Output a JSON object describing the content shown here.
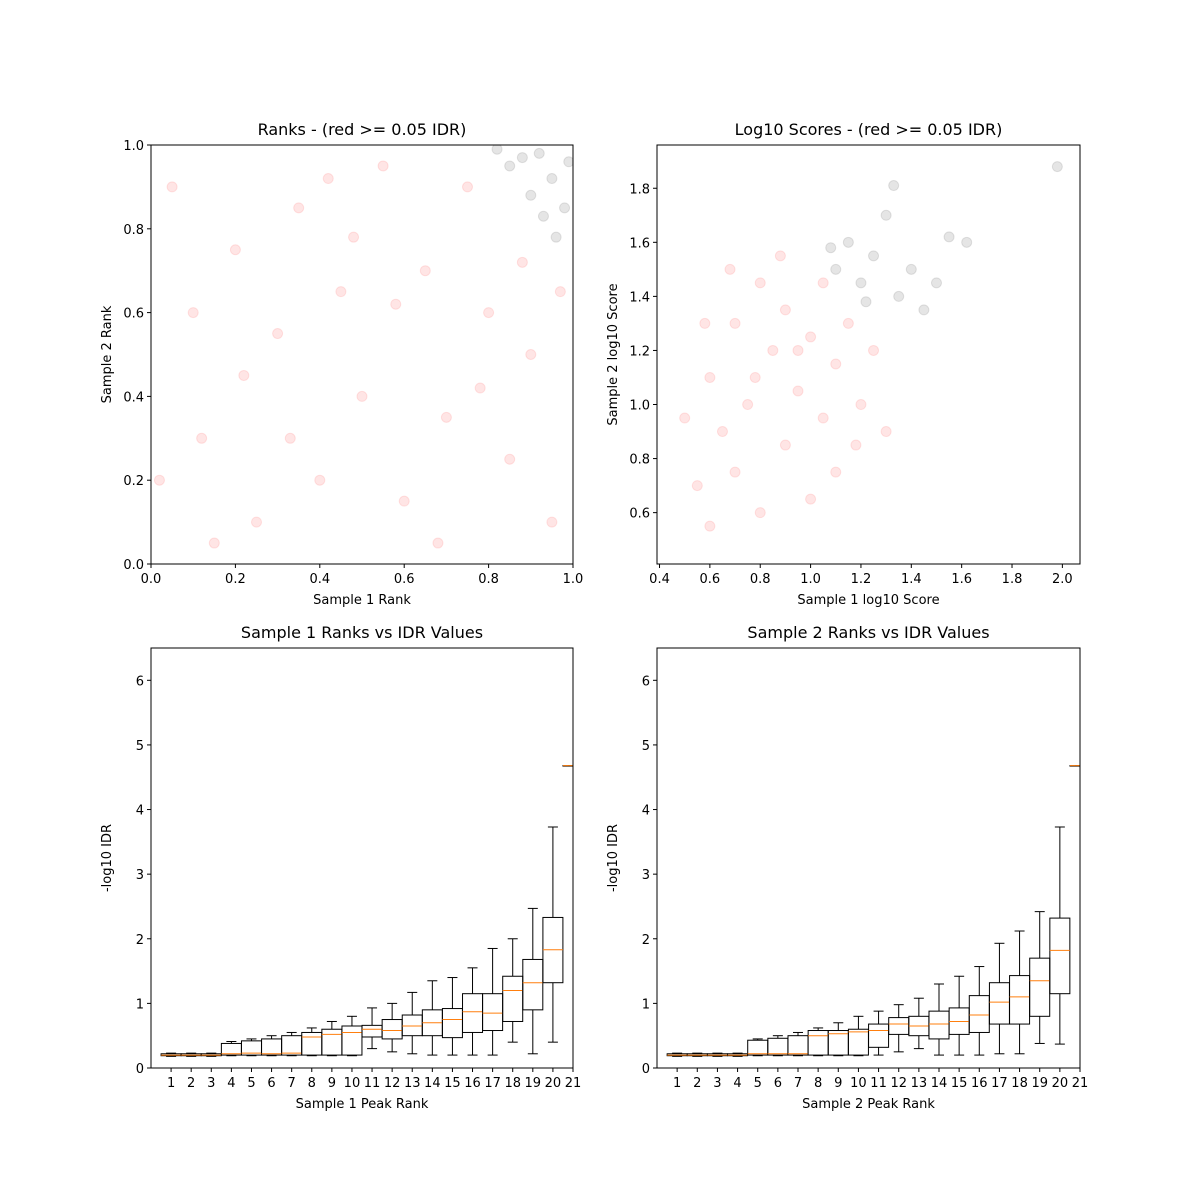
{
  "chart_data": [
    {
      "type": "scatter",
      "title": "Ranks - (red >= 0.05 IDR)",
      "x_label": "Sample 1 Rank",
      "y_label": "Sample 2 Rank",
      "xlim": [
        0,
        1
      ],
      "ylim": [
        0,
        1
      ],
      "xticks": [
        {
          "value": 0,
          "label": "0.0"
        },
        0.2,
        0.4,
        0.6,
        0.8,
        {
          "value": 1,
          "label": "1.0"
        }
      ],
      "yticks": [
        {
          "value": 0,
          "label": "0.0"
        },
        0.2,
        0.4,
        0.6,
        0.8,
        {
          "value": 1,
          "label": "1.0"
        }
      ],
      "series": [
        {
          "color": "#ff0000",
          "opacity": 0.1,
          "x": [
            0.05,
            0.12,
            0.2,
            0.25,
            0.3,
            0.35,
            0.4,
            0.45,
            0.5,
            0.55,
            0.6,
            0.65,
            0.7,
            0.75,
            0.8,
            0.85,
            0.9,
            0.95,
            0.1,
            0.15,
            0.22,
            0.33,
            0.42,
            0.58,
            0.68,
            0.78,
            0.88,
            0.97,
            0.02,
            0.48
          ],
          "y": [
            0.9,
            0.3,
            0.75,
            0.1,
            0.55,
            0.85,
            0.2,
            0.65,
            0.4,
            0.95,
            0.15,
            0.7,
            0.35,
            0.9,
            0.6,
            0.25,
            0.5,
            0.1,
            0.6,
            0.05,
            0.45,
            0.3,
            0.92,
            0.62,
            0.05,
            0.42,
            0.72,
            0.65,
            0.2,
            0.78
          ]
        },
        {
          "color": "#000000",
          "opacity": 0.1,
          "x": [
            0.85,
            0.9,
            0.95,
            0.92,
            0.98,
            0.88,
            0.96,
            0.82,
            0.99,
            0.93
          ],
          "y": [
            0.95,
            0.88,
            0.92,
            0.98,
            0.85,
            0.97,
            0.78,
            0.99,
            0.96,
            0.83
          ]
        }
      ]
    },
    {
      "type": "scatter",
      "title": "Log10 Scores - (red >= 0.05 IDR)",
      "x_label": "Sample 1 log10 Score",
      "y_label": "Sample 2 log10 Score",
      "xlim": [
        0.39,
        2.07
      ],
      "ylim": [
        0.41,
        1.96
      ],
      "xticks": [
        0.4,
        0.6,
        0.8,
        {
          "value": 1,
          "label": "1.0"
        },
        1.2,
        1.4,
        1.6,
        1.8,
        {
          "value": 2,
          "label": "2.0"
        }
      ],
      "yticks": [
        0.6,
        0.8,
        {
          "value": 1,
          "label": "1.0"
        },
        1.2,
        1.4,
        1.6,
        1.8
      ],
      "series": [
        {
          "color": "#ff0000",
          "opacity": 0.1,
          "x": [
            0.55,
            0.6,
            0.6,
            0.65,
            0.7,
            0.7,
            0.75,
            0.8,
            0.8,
            0.85,
            0.9,
            0.9,
            0.95,
            1.0,
            1.0,
            1.05,
            1.1,
            1.1,
            1.15,
            1.2,
            1.25,
            0.5,
            0.58,
            0.68,
            0.88,
            1.05,
            1.18,
            1.3,
            0.78,
            0.95
          ],
          "y": [
            0.7,
            1.1,
            0.55,
            0.9,
            1.3,
            0.75,
            1.0,
            1.45,
            0.6,
            1.2,
            0.85,
            1.35,
            1.05,
            0.65,
            1.25,
            0.95,
            1.15,
            0.75,
            1.3,
            1.0,
            1.2,
            0.95,
            1.3,
            1.5,
            1.55,
            1.45,
            0.85,
            0.9,
            1.1,
            1.2
          ]
        },
        {
          "color": "#000000",
          "opacity": 0.1,
          "x": [
            1.1,
            1.15,
            1.2,
            1.25,
            1.3,
            1.35,
            1.4,
            1.45,
            1.5,
            1.55,
            1.62,
            1.98,
            1.33,
            1.08,
            1.22
          ],
          "y": [
            1.5,
            1.6,
            1.45,
            1.55,
            1.7,
            1.4,
            1.5,
            1.35,
            1.45,
            1.62,
            1.6,
            1.88,
            1.81,
            1.58,
            1.38
          ]
        }
      ]
    },
    {
      "type": "box",
      "title": "Sample 1 Ranks vs IDR Values",
      "x_label": "Sample 1 Peak Rank",
      "y_label": "-log10 IDR",
      "xlim": [
        0,
        21
      ],
      "ylim": [
        0,
        6.5
      ],
      "xticks": [
        1,
        2,
        3,
        4,
        5,
        6,
        7,
        8,
        9,
        10,
        11,
        12,
        13,
        14,
        15,
        16,
        17,
        18,
        19,
        20,
        21
      ],
      "yticks": [
        0,
        1,
        2,
        3,
        4,
        5,
        6
      ],
      "x": [
        1,
        2,
        3,
        4,
        5,
        6,
        7,
        8,
        9,
        10,
        11,
        12,
        13,
        14,
        15,
        16,
        17,
        18,
        19,
        20,
        21
      ],
      "values": [
        [
          0.18,
          0.19,
          0.2,
          0.22,
          0.23
        ],
        [
          0.18,
          0.19,
          0.2,
          0.22,
          0.23
        ],
        [
          0.18,
          0.19,
          0.2,
          0.22,
          0.23
        ],
        [
          0.19,
          0.2,
          0.22,
          0.38,
          0.41
        ],
        [
          0.19,
          0.2,
          0.23,
          0.42,
          0.45
        ],
        [
          0.19,
          0.2,
          0.22,
          0.45,
          0.5
        ],
        [
          0.19,
          0.2,
          0.23,
          0.5,
          0.55
        ],
        [
          0.19,
          0.2,
          0.48,
          0.55,
          0.62
        ],
        [
          0.19,
          0.2,
          0.52,
          0.6,
          0.72
        ],
        [
          0.19,
          0.2,
          0.55,
          0.65,
          0.8
        ],
        [
          0.3,
          0.48,
          0.6,
          0.66,
          0.93
        ],
        [
          0.25,
          0.45,
          0.58,
          0.75,
          1.0
        ],
        [
          0.22,
          0.5,
          0.65,
          0.82,
          1.17
        ],
        [
          0.2,
          0.5,
          0.7,
          0.9,
          1.35
        ],
        [
          0.2,
          0.47,
          0.75,
          0.92,
          1.4
        ],
        [
          0.2,
          0.55,
          0.87,
          1.15,
          1.55
        ],
        [
          0.2,
          0.58,
          0.85,
          1.15,
          1.85
        ],
        [
          0.4,
          0.72,
          1.2,
          1.42,
          2.0
        ],
        [
          0.22,
          0.9,
          1.32,
          1.68,
          2.47
        ],
        [
          0.4,
          1.32,
          1.83,
          2.33,
          3.73
        ],
        [
          4.68,
          4.68,
          4.68,
          4.68,
          4.68
        ]
      ]
    },
    {
      "type": "box",
      "title": "Sample 2 Ranks vs IDR Values",
      "x_label": "Sample 2 Peak Rank",
      "y_label": "-log10 IDR",
      "xlim": [
        0,
        21
      ],
      "ylim": [
        0,
        6.5
      ],
      "xticks": [
        1,
        2,
        3,
        4,
        5,
        6,
        7,
        8,
        9,
        10,
        11,
        12,
        13,
        14,
        15,
        16,
        17,
        18,
        19,
        20,
        21
      ],
      "yticks": [
        0,
        1,
        2,
        3,
        4,
        5,
        6
      ],
      "x": [
        1,
        2,
        3,
        4,
        5,
        6,
        7,
        8,
        9,
        10,
        11,
        12,
        13,
        14,
        15,
        16,
        17,
        18,
        19,
        20,
        21
      ],
      "values": [
        [
          0.18,
          0.19,
          0.2,
          0.22,
          0.23
        ],
        [
          0.18,
          0.19,
          0.2,
          0.22,
          0.23
        ],
        [
          0.18,
          0.19,
          0.2,
          0.22,
          0.23
        ],
        [
          0.18,
          0.19,
          0.2,
          0.22,
          0.23
        ],
        [
          0.19,
          0.2,
          0.22,
          0.43,
          0.45
        ],
        [
          0.19,
          0.2,
          0.22,
          0.46,
          0.5
        ],
        [
          0.19,
          0.2,
          0.22,
          0.5,
          0.55
        ],
        [
          0.19,
          0.2,
          0.5,
          0.58,
          0.62
        ],
        [
          0.19,
          0.2,
          0.53,
          0.58,
          0.7
        ],
        [
          0.19,
          0.2,
          0.56,
          0.6,
          0.8
        ],
        [
          0.2,
          0.32,
          0.58,
          0.68,
          0.88
        ],
        [
          0.25,
          0.52,
          0.68,
          0.78,
          0.98
        ],
        [
          0.3,
          0.5,
          0.65,
          0.8,
          1.08
        ],
        [
          0.2,
          0.45,
          0.68,
          0.88,
          1.3
        ],
        [
          0.2,
          0.52,
          0.72,
          0.93,
          1.42
        ],
        [
          0.2,
          0.55,
          0.82,
          1.12,
          1.57
        ],
        [
          0.22,
          0.68,
          1.02,
          1.32,
          1.93
        ],
        [
          0.22,
          0.68,
          1.1,
          1.43,
          2.12
        ],
        [
          0.38,
          0.8,
          1.35,
          1.7,
          2.42
        ],
        [
          0.37,
          1.15,
          1.82,
          2.32,
          3.73
        ],
        [
          4.68,
          4.68,
          4.68,
          4.68,
          4.68
        ]
      ]
    }
  ]
}
